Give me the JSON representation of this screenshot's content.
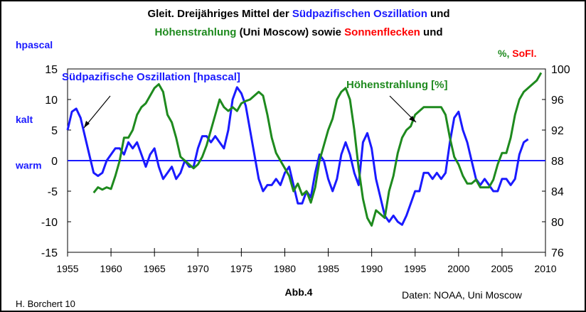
{
  "chart_data": {
    "type": "line",
    "title_lines": [
      [
        {
          "text": "Gleit. Dreijähriges Mittel der",
          "color": "#000000"
        },
        {
          "text": "Südpazifischen Oszillation",
          "color": "#1a1aff"
        },
        {
          "text": "und",
          "color": "#000000"
        }
      ],
      [
        {
          "text": "Höhenstrahlung",
          "color": "#1e8a1e"
        },
        {
          "text": "(Uni Moscow) sowie",
          "color": "#000000"
        },
        {
          "text": "Sonnenflecken",
          "color": "#ff0000"
        },
        {
          "text": "und",
          "color": "#000000"
        }
      ]
    ],
    "y_label": "hpascal",
    "y2_label_parts": [
      {
        "text": "%,",
        "color": "#1e8a1e"
      },
      {
        "text": "SoFl.",
        "color": "#ff0000"
      }
    ],
    "y_notes": [
      {
        "text": "kalt",
        "value": 5
      },
      {
        "text": "warm",
        "value": -2.5
      }
    ],
    "annotations": [
      "Südpazifische Oszillation [hpascal]",
      "Höhenstrahlung [%]"
    ],
    "credit": "H. Borchert 10",
    "figure_label": "Abb.4",
    "source": "Daten: NOAA, Uni Moscow",
    "xlim": [
      1955,
      2010
    ],
    "xticks": [
      1955,
      1960,
      1965,
      1970,
      1975,
      1980,
      1985,
      1990,
      1995,
      2000,
      2005,
      2010
    ],
    "ylim": [
      -15,
      15
    ],
    "yticks": [
      15,
      10,
      5,
      0,
      -5,
      -10,
      -15
    ],
    "y2lim": [
      76,
      100
    ],
    "y2ticks": [
      100,
      96,
      92,
      88,
      84,
      80,
      76
    ],
    "reference_line": 0,
    "series": [
      {
        "name": "Südpazifische Oszillation",
        "color": "#1a1aff",
        "axis": "y",
        "x": [
          1955,
          1955.5,
          1956,
          1956.5,
          1957,
          1957.5,
          1958,
          1958.5,
          1959,
          1959.5,
          1960,
          1960.5,
          1961,
          1961.5,
          1962,
          1962.5,
          1963,
          1963.5,
          1964,
          1964.5,
          1965,
          1965.5,
          1966,
          1966.5,
          1967,
          1967.5,
          1968,
          1968.5,
          1969,
          1969.5,
          1970,
          1970.5,
          1971,
          1971.5,
          1972,
          1972.5,
          1973,
          1973.5,
          1974,
          1974.5,
          1975,
          1975.5,
          1976,
          1976.5,
          1977,
          1977.5,
          1978,
          1978.5,
          1979,
          1979.5,
          1980,
          1980.5,
          1981,
          1981.5,
          1982,
          1982.5,
          1983,
          1983.5,
          1984,
          1984.5,
          1985,
          1985.5,
          1986,
          1986.5,
          1987,
          1987.5,
          1988,
          1988.5,
          1989,
          1989.5,
          1990,
          1990.5,
          1991,
          1991.5,
          1992,
          1992.5,
          1993,
          1993.5,
          1994,
          1994.5,
          1995,
          1995.5,
          1996,
          1996.5,
          1997,
          1997.5,
          1998,
          1998.5,
          1999,
          1999.5,
          2000,
          2000.5,
          2001,
          2001.5,
          2002,
          2002.5,
          2003,
          2003.5,
          2004,
          2004.5,
          2005,
          2005.5,
          2006,
          2006.5,
          2007,
          2007.5,
          2008
        ],
        "values": [
          5,
          8,
          8.5,
          7,
          4,
          1,
          -2,
          -2.5,
          -2,
          0,
          1,
          2,
          2,
          1,
          3,
          2,
          3,
          1,
          -1,
          1,
          2,
          -1,
          -3,
          -2,
          -1,
          -3,
          -2,
          0,
          -1,
          -1,
          2,
          4,
          4,
          3,
          4,
          3,
          2,
          5,
          10,
          12,
          11,
          9,
          5,
          1,
          -3,
          -5,
          -4,
          -4,
          -3,
          -4,
          -2,
          -1,
          -4,
          -7,
          -7,
          -5,
          -6,
          -2,
          1,
          0,
          -3,
          -5,
          -3,
          1,
          3,
          1,
          -2,
          -4,
          3,
          4.5,
          2,
          -3,
          -6,
          -9,
          -10,
          -9,
          -10,
          -10.5,
          -9,
          -7,
          -5,
          -5,
          -2,
          -2,
          -3,
          -2,
          -3,
          -2,
          3,
          7,
          8,
          5,
          3,
          0,
          -3,
          -4,
          -3,
          -4,
          -5,
          -5,
          -3,
          -3,
          -4,
          -3,
          1,
          3,
          3.5
        ]
      },
      {
        "name": "Höhenstrahlung",
        "color": "#1e8a1e",
        "axis": "y2",
        "x": [
          1958,
          1958.5,
          1959,
          1959.5,
          1960,
          1960.5,
          1961,
          1961.5,
          1962,
          1962.5,
          1963,
          1963.5,
          1964,
          1964.5,
          1965,
          1965.5,
          1966,
          1966.5,
          1967,
          1967.5,
          1968,
          1968.5,
          1969,
          1969.5,
          1970,
          1970.5,
          1971,
          1971.5,
          1972,
          1972.5,
          1973,
          1973.5,
          1974,
          1974.5,
          1975,
          1975.5,
          1976,
          1976.5,
          1977,
          1977.5,
          1978,
          1978.5,
          1979,
          1979.5,
          1980,
          1980.5,
          1981,
          1981.5,
          1982,
          1982.5,
          1983,
          1983.5,
          1984,
          1984.5,
          1985,
          1985.5,
          1986,
          1986.5,
          1987,
          1987.5,
          1988,
          1988.5,
          1989,
          1989.5,
          1990,
          1990.5,
          1991,
          1991.5,
          1992,
          1992.5,
          1993,
          1993.5,
          1994,
          1994.5,
          1995,
          1995.5,
          1996,
          1996.5,
          1997,
          1997.5,
          1998,
          1998.5,
          1999,
          1999.5,
          2000,
          2000.5,
          2001,
          2001.5,
          2002,
          2002.5,
          2003,
          2003.5,
          2004,
          2004.5,
          2005,
          2005.5,
          2006,
          2006.5,
          2007,
          2007.5,
          2008,
          2008.5,
          2009,
          2009.5
        ],
        "values": [
          83.8,
          84.5,
          84.2,
          84.5,
          84.3,
          86,
          88,
          91,
          91,
          92,
          94,
          95,
          95.5,
          96.5,
          97.5,
          98,
          97,
          94,
          93,
          91,
          88.5,
          88,
          87.5,
          87,
          87.5,
          88.5,
          90,
          92,
          94,
          96,
          95,
          94.5,
          95,
          94.5,
          95.5,
          95.8,
          96,
          96.5,
          97,
          96.5,
          94,
          91,
          89,
          88,
          87,
          86,
          84,
          85,
          83.5,
          84,
          82.5,
          84.5,
          88,
          90,
          92,
          93.5,
          96,
          97,
          97.5,
          96,
          92,
          87,
          83,
          80.5,
          79.5,
          81.5,
          81,
          80.5,
          84,
          86,
          89,
          91,
          92,
          92.5,
          94,
          94.5,
          95,
          95,
          95,
          95,
          95,
          94,
          91,
          88.5,
          87.5,
          86,
          85,
          85,
          85.5,
          84.5,
          84.5,
          84.5,
          85.5,
          87.5,
          89,
          89,
          91,
          94,
          96,
          97,
          97.5,
          98,
          98.5,
          99.5
        ]
      }
    ]
  }
}
